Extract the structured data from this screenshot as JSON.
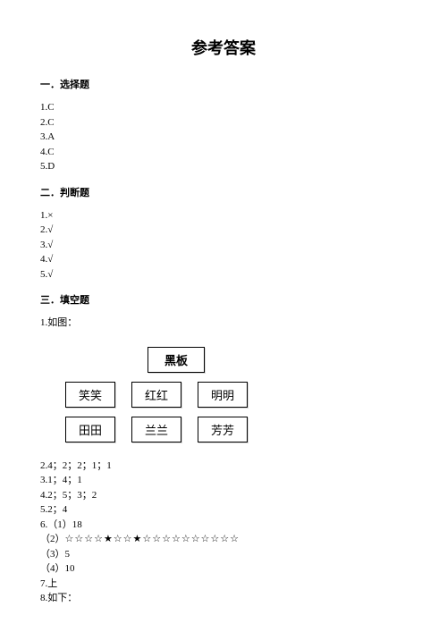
{
  "title": "参考答案",
  "sections": {
    "s1": {
      "header": "一．选择题",
      "answers": [
        "1.C",
        "2.C",
        "3.A",
        "4.C",
        "5.D"
      ]
    },
    "s2": {
      "header": "二．判断题",
      "answers": [
        "1.×",
        "2.√",
        "3.√",
        "4.√",
        "5.√"
      ]
    },
    "s3": {
      "header": "三．填空题",
      "q1_label": "1.如图：",
      "diagram": {
        "blackboard": "黑板",
        "row2": [
          "笑笑",
          "红红",
          "明明"
        ],
        "row3": [
          "田田",
          "兰兰",
          "芳芳"
        ]
      },
      "rest": [
        "2.4；2；2；1；1",
        "3.1；4；1",
        "4.2；5；3；2",
        "5.2；4",
        "6.（1）18"
      ],
      "stars_prefix": "（2）",
      "stars_pattern": "☆☆☆☆★☆☆★☆☆☆☆☆☆☆☆☆☆",
      "rest2": [
        "（3）5",
        "（4）10",
        "7.上",
        "8.如下："
      ]
    }
  }
}
